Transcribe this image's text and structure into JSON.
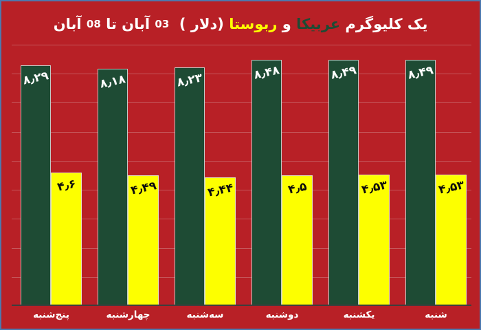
{
  "colors": {
    "background": "#b82026",
    "arabica_green": "#1e4b34",
    "robusta_yellow": "#fdff00",
    "title_white": "#ffffff",
    "value_label_on_green": "#ffffff",
    "value_label_on_yellow": "#0d0d0d",
    "gridline": "rgba(235,235,235,0.28)",
    "axis_line": "#3d3d3d",
    "frame_border": "#4e77ad"
  },
  "title": {
    "full_text": "یک کلیوگرم عربیکا و ربوستا (دلار )  03 آبان تا 08 آبان",
    "segments": [
      {
        "text": "یک کلیوگرم ",
        "color": "#ffffff",
        "size": "normal"
      },
      {
        "text": "عربیکا",
        "color": "#1e4b34",
        "size": "normal"
      },
      {
        "text": " و ",
        "color": "#ffffff",
        "size": "normal"
      },
      {
        "text": "ربوستا",
        "color": "#fdff00",
        "size": "normal"
      },
      {
        "text": " (دلار )  ",
        "color": "#ffffff",
        "size": "normal"
      },
      {
        "text": "03",
        "color": "#ffffff",
        "size": "small"
      },
      {
        "text": " آبان تا ",
        "color": "#ffffff",
        "size": "normal"
      },
      {
        "text": "08",
        "color": "#ffffff",
        "size": "small"
      },
      {
        "text": " آبان",
        "color": "#ffffff",
        "size": "normal"
      }
    ]
  },
  "chart_data": {
    "type": "bar",
    "title": "یک کلیوگرم عربیکا و ربوستا (دلار )  03 آبان تا 08 آبان",
    "xlabel": "",
    "ylabel": "",
    "ylim": [
      0,
      9
    ],
    "gridline_step": 1,
    "grid": true,
    "legend_position": "none",
    "x_axis_direction": "rtl",
    "categories_display_left_to_right": [
      "پنج‌شنبه",
      "چهارشنبه",
      "سه‌شنبه",
      "دوشنبه",
      "یکشنبه",
      "شنبه"
    ],
    "categories_chronological": [
      "شنبه",
      "یکشنبه",
      "دوشنبه",
      "سه‌شنبه",
      "چهارشنبه",
      "پنج‌شنبه"
    ],
    "series": [
      {
        "name": "عربیکا",
        "color": "#1e4b34",
        "values_display_left_to_right": [
          8.29,
          8.18,
          8.23,
          8.48,
          8.49,
          8.49
        ],
        "value_labels_farsi": [
          "۸٫۲۹",
          "۸٫۱۸",
          "۸٫۲۳",
          "۸٫۴۸",
          "۸٫۴۹",
          "۸٫۴۹"
        ]
      },
      {
        "name": "ربوستا",
        "color": "#fdff00",
        "values_display_left_to_right": [
          4.6,
          4.49,
          4.44,
          4.5,
          4.53,
          4.53
        ],
        "value_labels_farsi": [
          "۴٫۶",
          "۴٫۴۹",
          "۴٫۴۴",
          "۴٫۵",
          "۴٫۵۳",
          "۴٫۵۳"
        ]
      }
    ]
  }
}
